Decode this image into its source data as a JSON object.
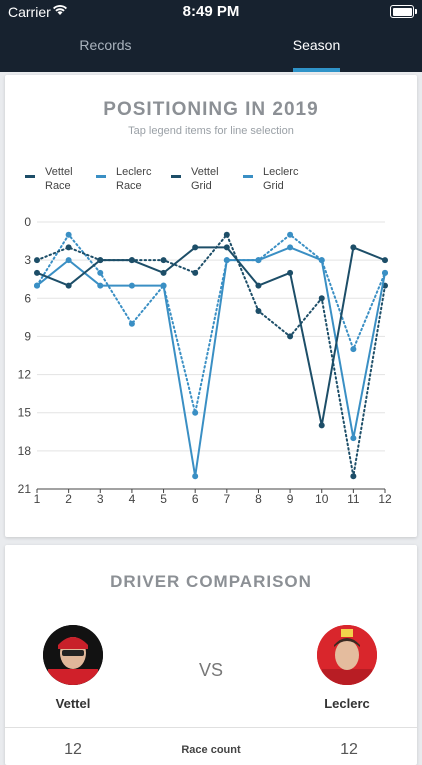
{
  "status": {
    "carrier": "Carrier",
    "time": "8:49 PM"
  },
  "tabs": {
    "records": "Records",
    "season": "Season"
  },
  "positioning_card": {
    "title": "POSITIONING IN 2019",
    "subtitle": "Tap legend items for line selection"
  },
  "colors": {
    "vettel": "#1d4e68",
    "leclerc": "#3a8fc4",
    "bar": "#17222f",
    "accent": "#2f93c8"
  },
  "chart_data": {
    "type": "line",
    "title": "POSITIONING IN 2019",
    "subtitle": "Tap legend items for line selection",
    "x": [
      1,
      2,
      3,
      4,
      5,
      6,
      7,
      8,
      9,
      10,
      11,
      12
    ],
    "y_ticks": [
      0,
      3,
      6,
      9,
      12,
      15,
      18,
      21
    ],
    "ylim": [
      0,
      21
    ],
    "y_inverted": true,
    "grid": true,
    "legend_position": "top",
    "series": [
      {
        "name": "Vettel\nRace",
        "style": "solid",
        "color": "#1d4e68",
        "values": [
          4,
          5,
          3,
          3,
          4,
          2,
          2,
          5,
          4,
          16,
          2,
          3
        ]
      },
      {
        "name": "Leclerc\nRace",
        "style": "solid",
        "color": "#3a8fc4",
        "values": [
          5,
          3,
          5,
          5,
          5,
          20,
          3,
          3,
          2,
          3,
          17,
          4
        ]
      },
      {
        "name": "Vettel\nGrid",
        "style": "dotted",
        "color": "#1d4e68",
        "values": [
          3,
          2,
          3,
          3,
          3,
          4,
          1,
          7,
          9,
          6,
          20,
          5
        ]
      },
      {
        "name": "Leclerc\nGrid",
        "style": "dotted",
        "color": "#3a8fc4",
        "values": [
          5,
          1,
          4,
          8,
          5,
          15,
          3,
          3,
          1,
          3,
          10,
          4
        ]
      }
    ]
  },
  "comparison": {
    "title": "DRIVER COMPARISON",
    "vs": "VS",
    "driver_left": "Vettel",
    "driver_right": "Leclerc",
    "rows": [
      {
        "label": "Race count",
        "left": "12",
        "right": "12"
      }
    ]
  }
}
